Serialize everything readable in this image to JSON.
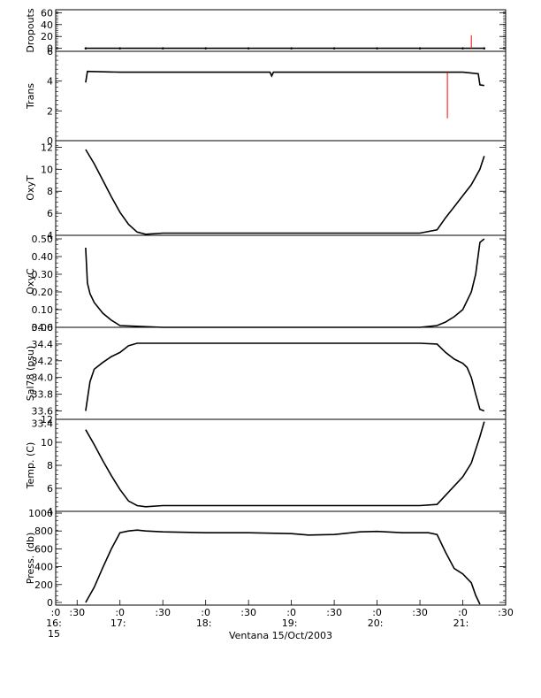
{
  "chart_data": [
    {
      "type": "line",
      "ylabel": "Dropouts",
      "ylim": [
        -5,
        65
      ],
      "yticks": [
        0,
        20,
        40,
        60
      ],
      "ytick_labels": [
        "0",
        "20",
        "40",
        "60"
      ],
      "series": [
        {
          "color": "#000000",
          "x": [
            16.6,
            17.0,
            17.5,
            18.0,
            18.5,
            19.0,
            19.5,
            20.0,
            20.5,
            21.0,
            21.25
          ],
          "y": [
            0,
            0,
            0,
            0,
            0,
            0,
            0,
            0,
            0,
            0,
            0
          ]
        },
        {
          "color": "#ff0000",
          "x": [
            21.1,
            21.1,
            21.1
          ],
          "y": [
            0,
            22,
            0
          ]
        }
      ]
    },
    {
      "type": "line",
      "ylabel": "Trans",
      "ylim": [
        0,
        6
      ],
      "yticks": [
        0,
        2,
        4,
        6
      ],
      "ytick_labels": [
        "0",
        "2",
        "4",
        "6"
      ],
      "series": [
        {
          "color": "#000000",
          "x": [
            16.6,
            16.62,
            17.0,
            17.5,
            18.0,
            18.5,
            18.75,
            18.77,
            18.79,
            19.0,
            19.5,
            20.0,
            20.5,
            20.8,
            21.0,
            21.18,
            21.2,
            21.25
          ],
          "y": [
            3.9,
            4.65,
            4.6,
            4.6,
            4.6,
            4.6,
            4.6,
            4.35,
            4.6,
            4.6,
            4.6,
            4.6,
            4.6,
            4.6,
            4.6,
            4.5,
            3.75,
            3.7
          ]
        },
        {
          "color": "#ff0000",
          "x": [
            20.82,
            20.82,
            20.82
          ],
          "y": [
            4.6,
            1.5,
            4.6
          ]
        }
      ]
    },
    {
      "type": "line",
      "ylabel": "OxyT",
      "ylim": [
        4,
        12.6
      ],
      "yticks": [
        4,
        6,
        8,
        10,
        12
      ],
      "ytick_labels": [
        "4",
        "6",
        "8",
        "10",
        "12"
      ],
      "series": [
        {
          "color": "#000000",
          "x": [
            16.6,
            16.7,
            16.8,
            16.9,
            17.0,
            17.1,
            17.2,
            17.3,
            17.5,
            18.0,
            18.5,
            19.0,
            19.5,
            20.0,
            20.5,
            20.7,
            20.8,
            20.9,
            21.0,
            21.1,
            21.2,
            21.25
          ],
          "y": [
            11.8,
            10.5,
            9.0,
            7.5,
            6.1,
            5.0,
            4.3,
            4.1,
            4.2,
            4.2,
            4.2,
            4.2,
            4.2,
            4.2,
            4.2,
            4.5,
            5.6,
            6.6,
            7.6,
            8.6,
            10.0,
            11.2
          ]
        }
      ]
    },
    {
      "type": "line",
      "ylabel": "OxyC",
      "ylim": [
        0,
        0.52
      ],
      "yticks": [
        0,
        0.1,
        0.2,
        0.3,
        0.4,
        0.5
      ],
      "ytick_labels": [
        "0.00",
        "0.10",
        "0.20",
        "0.30",
        "0.40",
        "0.50"
      ],
      "series": [
        {
          "color": "#000000",
          "x": [
            16.6,
            16.62,
            16.65,
            16.7,
            16.8,
            16.9,
            17.0,
            17.5,
            18.0,
            18.5,
            19.0,
            19.5,
            20.0,
            20.5,
            20.7,
            20.8,
            20.9,
            21.0,
            21.1,
            21.15,
            21.2,
            21.25
          ],
          "y": [
            0.45,
            0.25,
            0.19,
            0.14,
            0.08,
            0.04,
            0.01,
            0.0,
            0.0,
            0.0,
            0.0,
            0.0,
            0.0,
            0.0,
            0.01,
            0.03,
            0.06,
            0.1,
            0.2,
            0.3,
            0.48,
            0.5
          ]
        }
      ]
    },
    {
      "type": "line",
      "ylabel": "Sal78 (psu)",
      "ylim": [
        33.5,
        34.6
      ],
      "yticks": [
        33.6,
        33.8,
        34.0,
        34.2,
        34.4,
        34.6
      ],
      "ytick_labels": [
        "33.6",
        "33.8",
        "34.0",
        "34.2",
        "34.4",
        "34.6"
      ],
      "extra_ticks": [
        33.45
      ],
      "extra_tick_labels": [
        "33.4"
      ],
      "series": [
        {
          "color": "#000000",
          "x": [
            16.6,
            16.65,
            16.7,
            16.8,
            16.9,
            17.0,
            17.1,
            17.2,
            17.5,
            18.0,
            18.5,
            19.0,
            19.5,
            20.0,
            20.5,
            20.7,
            20.8,
            20.9,
            21.0,
            21.05,
            21.1,
            21.15,
            21.2,
            21.25
          ],
          "y": [
            33.6,
            33.95,
            34.1,
            34.18,
            34.25,
            34.3,
            34.38,
            34.41,
            34.41,
            34.41,
            34.41,
            34.41,
            34.41,
            34.41,
            34.41,
            34.4,
            34.3,
            34.22,
            34.17,
            34.12,
            34.0,
            33.8,
            33.62,
            33.6
          ]
        }
      ]
    },
    {
      "type": "line",
      "ylabel": "Temp. (C)",
      "ylim": [
        4,
        12
      ],
      "yticks": [
        4,
        6,
        8,
        10,
        12
      ],
      "ytick_labels": [
        "4",
        "6",
        "8",
        "10",
        "12"
      ],
      "series": [
        {
          "color": "#000000",
          "x": [
            16.6,
            16.7,
            16.8,
            16.9,
            17.0,
            17.1,
            17.2,
            17.3,
            17.5,
            18.0,
            18.5,
            19.0,
            19.5,
            20.0,
            20.5,
            20.7,
            20.8,
            20.9,
            21.0,
            21.1,
            21.2,
            21.25
          ],
          "y": [
            11.1,
            9.8,
            8.4,
            7.1,
            5.9,
            4.9,
            4.5,
            4.4,
            4.5,
            4.5,
            4.5,
            4.5,
            4.5,
            4.5,
            4.5,
            4.6,
            5.4,
            6.2,
            7.0,
            8.2,
            10.5,
            11.8
          ]
        }
      ]
    },
    {
      "type": "line",
      "ylabel": "Press. (db)",
      "ylim": [
        -30,
        1020
      ],
      "yticks": [
        0,
        200,
        400,
        600,
        800,
        1000
      ],
      "ytick_labels": [
        "0",
        "200",
        "400",
        "600",
        "800",
        "1000"
      ],
      "series": [
        {
          "color": "#000000",
          "x": [
            16.6,
            16.7,
            16.8,
            16.9,
            17.0,
            17.1,
            17.2,
            17.3,
            17.5,
            18.0,
            18.5,
            19.0,
            19.2,
            19.5,
            19.8,
            20.0,
            20.3,
            20.6,
            20.7,
            20.8,
            20.9,
            21.0,
            21.1,
            21.15,
            21.2
          ],
          "y": [
            0,
            170,
            390,
            600,
            780,
            800,
            810,
            800,
            790,
            780,
            780,
            770,
            755,
            760,
            790,
            795,
            780,
            780,
            760,
            560,
            380,
            320,
            220,
            80,
            -20
          ]
        }
      ]
    }
  ],
  "x_axis": {
    "xlim": [
      16.25,
      21.5
    ],
    "ticks": [
      16.25,
      16.5,
      17.0,
      17.5,
      18.0,
      18.5,
      19.0,
      19.5,
      20.0,
      20.5,
      21.0,
      21.5
    ],
    "tick_labels": [
      ":0",
      ":30",
      ":0",
      ":30",
      ":0",
      ":30",
      ":0",
      ":30",
      ":0",
      ":30",
      ":0",
      ":30"
    ],
    "hour_ticks": [
      16.25,
      17.0,
      18.0,
      19.0,
      20.0,
      21.0
    ],
    "hour_labels": [
      "16:",
      "17:",
      "18:",
      "19:",
      "20:",
      "21:"
    ],
    "extra_label": "15",
    "xlabel": "Ventana 15/Oct/2003"
  }
}
